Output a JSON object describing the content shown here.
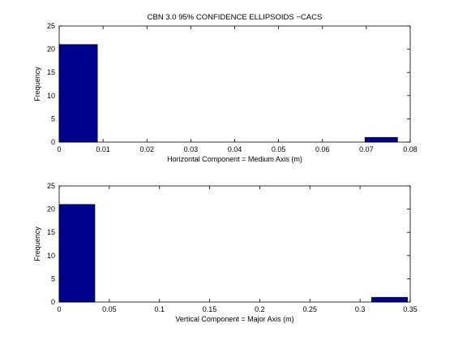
{
  "chart_data": [
    {
      "type": "bar",
      "title": "CBN 3.0 95% CONFIDENCE ELLIPSOIDS −CACS",
      "xlabel": "Horizontal Component = Medium Axis (m)",
      "ylabel": "Frequency",
      "xlim": [
        0,
        0.08
      ],
      "ylim": [
        0,
        25
      ],
      "xticks": [
        "0",
        "0.01",
        "0.02",
        "0.03",
        "0.04",
        "0.05",
        "0.06",
        "0.07",
        "0.08"
      ],
      "yticks": [
        "0",
        "5",
        "10",
        "15",
        "20",
        "25"
      ],
      "bars": [
        {
          "x0": 0.0,
          "x1": 0.0087,
          "value": 21
        },
        {
          "x0": 0.0697,
          "x1": 0.0771,
          "value": 1
        }
      ],
      "grid": false
    },
    {
      "type": "bar",
      "title": "",
      "xlabel": "Vertical Component = Major Axis (m)",
      "ylabel": "Frequency",
      "xlim": [
        0,
        0.35
      ],
      "ylim": [
        0,
        25
      ],
      "xticks": [
        "0",
        "0.05",
        "0.1",
        "0.15",
        "0.2",
        "0.25",
        "0.3",
        "0.35"
      ],
      "yticks": [
        "0",
        "5",
        "10",
        "15",
        "20",
        "25"
      ],
      "bars": [
        {
          "x0": 0.0,
          "x1": 0.0355,
          "value": 21
        },
        {
          "x0": 0.3116,
          "x1": 0.3472,
          "value": 1
        }
      ],
      "grid": false
    }
  ],
  "colors": {
    "bar_fill": "#00008f",
    "bar_edge": "#000000",
    "axis": "#000000",
    "background": "#ffffff"
  }
}
